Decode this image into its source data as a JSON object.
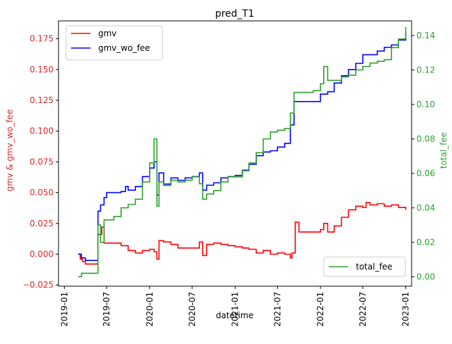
{
  "chart_data": {
    "type": "line",
    "title": "pred_T1",
    "xlabel": "datetime",
    "ylabel_left": "gmv & gmv_wo_fee",
    "ylabel_right": "total_fee",
    "x_range": [
      "2018-12-07",
      "2023-01-26"
    ],
    "ylim_left": [
      -0.026,
      0.1895
    ],
    "ylim_right": [
      -0.0055,
      0.1485
    ],
    "x_ticks": [
      "2019-01",
      "2019-07",
      "2020-01",
      "2020-07",
      "2021-01",
      "2021-07",
      "2022-01",
      "2022-07",
      "2023-01"
    ],
    "y_ticks_left": [
      "−0.025",
      "0.000",
      "0.025",
      "0.050",
      "0.075",
      "0.100",
      "0.125",
      "0.150",
      "0.175"
    ],
    "y_ticks_right": [
      "0.00",
      "0.02",
      "0.04",
      "0.06",
      "0.08",
      "0.10",
      "0.12",
      "0.14"
    ],
    "colors": {
      "gmv": "#ff0000",
      "gmv_wo_fee": "#0000ff",
      "total_fee": "#2ca02c",
      "left_axis": "#d62728",
      "right_axis": "#2ca02c"
    },
    "legend_left": {
      "placement": "upper-left",
      "entries": [
        "gmv",
        "gmv_wo_fee"
      ]
    },
    "legend_right": {
      "placement": "lower-right",
      "entries": [
        "total_fee"
      ]
    },
    "series": [
      {
        "name": "gmv",
        "axis": "left",
        "color": "#ff0000",
        "points": [
          [
            "2019-03-01",
            0.0
          ],
          [
            "2019-03-10",
            -0.004
          ],
          [
            "2019-03-20",
            -0.006
          ],
          [
            "2019-04-01",
            -0.008
          ],
          [
            "2019-05-01",
            -0.008
          ],
          [
            "2019-05-15",
            -0.008
          ],
          [
            "2019-05-25",
            0.016
          ],
          [
            "2019-06-10",
            0.022
          ],
          [
            "2019-06-20",
            0.009
          ],
          [
            "2019-08-01",
            0.009
          ],
          [
            "2019-09-01",
            0.007
          ],
          [
            "2019-10-01",
            0.003
          ],
          [
            "2019-11-01",
            0.001
          ],
          [
            "2019-12-01",
            0.003
          ],
          [
            "2020-01-01",
            0.004
          ],
          [
            "2020-01-20",
            0.002
          ],
          [
            "2020-02-01",
            -0.004
          ],
          [
            "2020-02-10",
            0.011
          ],
          [
            "2020-03-01",
            0.01
          ],
          [
            "2020-04-01",
            0.008
          ],
          [
            "2020-05-01",
            0.005
          ],
          [
            "2020-07-01",
            0.005
          ],
          [
            "2020-08-01",
            0.01
          ],
          [
            "2020-08-15",
            -0.001
          ],
          [
            "2020-09-01",
            0.008
          ],
          [
            "2020-10-01",
            0.009
          ],
          [
            "2020-11-01",
            0.008
          ],
          [
            "2020-12-01",
            0.007
          ],
          [
            "2021-01-01",
            0.006
          ],
          [
            "2021-02-01",
            0.005
          ],
          [
            "2021-03-01",
            0.004
          ],
          [
            "2021-04-01",
            0.001
          ],
          [
            "2021-05-01",
            0.003
          ],
          [
            "2021-06-01",
            0.0
          ],
          [
            "2021-07-01",
            0.001
          ],
          [
            "2021-08-01",
            0.0
          ],
          [
            "2021-08-25",
            -0.003
          ],
          [
            "2021-09-01",
            0.001
          ],
          [
            "2021-09-15",
            0.026
          ],
          [
            "2021-10-01",
            0.018
          ],
          [
            "2021-12-01",
            0.018
          ],
          [
            "2022-01-01",
            0.02
          ],
          [
            "2022-01-15",
            0.025
          ],
          [
            "2022-02-01",
            0.018
          ],
          [
            "2022-03-01",
            0.023
          ],
          [
            "2022-04-01",
            0.03
          ],
          [
            "2022-05-01",
            0.036
          ],
          [
            "2022-06-01",
            0.039
          ],
          [
            "2022-07-01",
            0.038
          ],
          [
            "2022-07-15",
            0.042
          ],
          [
            "2022-08-01",
            0.04
          ],
          [
            "2022-09-01",
            0.041
          ],
          [
            "2022-10-01",
            0.039
          ],
          [
            "2022-11-01",
            0.04
          ],
          [
            "2022-12-01",
            0.038
          ],
          [
            "2023-01-01",
            0.036
          ]
        ]
      },
      {
        "name": "gmv_wo_fee",
        "axis": "left",
        "color": "#0000ff",
        "points": [
          [
            "2019-03-01",
            0.0
          ],
          [
            "2019-03-15",
            -0.003
          ],
          [
            "2019-04-01",
            -0.005
          ],
          [
            "2019-05-01",
            -0.005
          ],
          [
            "2019-05-15",
            -0.005
          ],
          [
            "2019-05-25",
            0.035
          ],
          [
            "2019-06-05",
            0.04
          ],
          [
            "2019-06-20",
            0.046
          ],
          [
            "2019-07-01",
            0.05
          ],
          [
            "2019-08-01",
            0.05
          ],
          [
            "2019-09-01",
            0.051
          ],
          [
            "2019-09-20",
            0.055
          ],
          [
            "2019-10-01",
            0.052
          ],
          [
            "2019-11-01",
            0.055
          ],
          [
            "2019-12-01",
            0.063
          ],
          [
            "2020-01-01",
            0.07
          ],
          [
            "2020-01-20",
            0.075
          ],
          [
            "2020-02-01",
            0.048
          ],
          [
            "2020-02-10",
            0.066
          ],
          [
            "2020-03-01",
            0.057
          ],
          [
            "2020-04-01",
            0.062
          ],
          [
            "2020-05-01",
            0.06
          ],
          [
            "2020-06-01",
            0.062
          ],
          [
            "2020-07-01",
            0.063
          ],
          [
            "2020-08-01",
            0.066
          ],
          [
            "2020-08-15",
            0.052
          ],
          [
            "2020-09-01",
            0.056
          ],
          [
            "2020-10-01",
            0.058
          ],
          [
            "2020-11-01",
            0.062
          ],
          [
            "2020-12-01",
            0.063
          ],
          [
            "2021-01-01",
            0.064
          ],
          [
            "2021-02-01",
            0.068
          ],
          [
            "2021-03-01",
            0.073
          ],
          [
            "2021-04-01",
            0.08
          ],
          [
            "2021-05-01",
            0.083
          ],
          [
            "2021-06-01",
            0.084
          ],
          [
            "2021-07-01",
            0.087
          ],
          [
            "2021-08-01",
            0.09
          ],
          [
            "2021-08-25",
            0.105
          ],
          [
            "2021-09-10",
            0.124
          ],
          [
            "2021-10-01",
            0.124
          ],
          [
            "2021-12-01",
            0.124
          ],
          [
            "2022-01-01",
            0.13
          ],
          [
            "2022-02-01",
            0.132
          ],
          [
            "2022-03-01",
            0.139
          ],
          [
            "2022-04-01",
            0.145
          ],
          [
            "2022-05-01",
            0.15
          ],
          [
            "2022-06-01",
            0.155
          ],
          [
            "2022-07-01",
            0.162
          ],
          [
            "2022-08-01",
            0.162
          ],
          [
            "2022-09-01",
            0.165
          ],
          [
            "2022-10-01",
            0.168
          ],
          [
            "2022-11-01",
            0.17
          ],
          [
            "2022-12-01",
            0.174
          ],
          [
            "2023-01-01",
            0.179
          ]
        ]
      },
      {
        "name": "total_fee",
        "axis": "right",
        "color": "#2ca02c",
        "points": [
          [
            "2019-03-01",
            0.0
          ],
          [
            "2019-03-15",
            0.002
          ],
          [
            "2019-04-01",
            0.002
          ],
          [
            "2019-05-15",
            0.002
          ],
          [
            "2019-05-25",
            0.03
          ],
          [
            "2019-06-05",
            0.02
          ],
          [
            "2019-06-20",
            0.033
          ],
          [
            "2019-07-01",
            0.033
          ],
          [
            "2019-08-01",
            0.035
          ],
          [
            "2019-09-01",
            0.04
          ],
          [
            "2019-10-01",
            0.042
          ],
          [
            "2019-11-01",
            0.045
          ],
          [
            "2019-12-01",
            0.055
          ],
          [
            "2020-01-01",
            0.066
          ],
          [
            "2020-01-20",
            0.08
          ],
          [
            "2020-02-01",
            0.041
          ],
          [
            "2020-02-10",
            0.055
          ],
          [
            "2020-03-01",
            0.053
          ],
          [
            "2020-04-01",
            0.056
          ],
          [
            "2020-05-01",
            0.055
          ],
          [
            "2020-06-01",
            0.056
          ],
          [
            "2020-07-01",
            0.058
          ],
          [
            "2020-08-01",
            0.054
          ],
          [
            "2020-08-15",
            0.045
          ],
          [
            "2020-09-01",
            0.048
          ],
          [
            "2020-10-01",
            0.05
          ],
          [
            "2020-11-01",
            0.055
          ],
          [
            "2020-12-01",
            0.058
          ],
          [
            "2021-01-01",
            0.058
          ],
          [
            "2021-02-01",
            0.062
          ],
          [
            "2021-03-01",
            0.066
          ],
          [
            "2021-04-01",
            0.072
          ],
          [
            "2021-05-01",
            0.08
          ],
          [
            "2021-06-01",
            0.084
          ],
          [
            "2021-07-01",
            0.085
          ],
          [
            "2021-08-01",
            0.086
          ],
          [
            "2021-08-25",
            0.095
          ],
          [
            "2021-09-10",
            0.107
          ],
          [
            "2021-10-01",
            0.107
          ],
          [
            "2021-12-01",
            0.108
          ],
          [
            "2022-01-01",
            0.112
          ],
          [
            "2022-01-15",
            0.122
          ],
          [
            "2022-02-01",
            0.114
          ],
          [
            "2022-03-01",
            0.114
          ],
          [
            "2022-04-01",
            0.116
          ],
          [
            "2022-05-01",
            0.117
          ],
          [
            "2022-06-01",
            0.12
          ],
          [
            "2022-07-01",
            0.122
          ],
          [
            "2022-08-01",
            0.124
          ],
          [
            "2022-09-01",
            0.125
          ],
          [
            "2022-10-01",
            0.126
          ],
          [
            "2022-11-01",
            0.133
          ],
          [
            "2022-12-01",
            0.138
          ],
          [
            "2023-01-01",
            0.145
          ]
        ]
      }
    ]
  }
}
